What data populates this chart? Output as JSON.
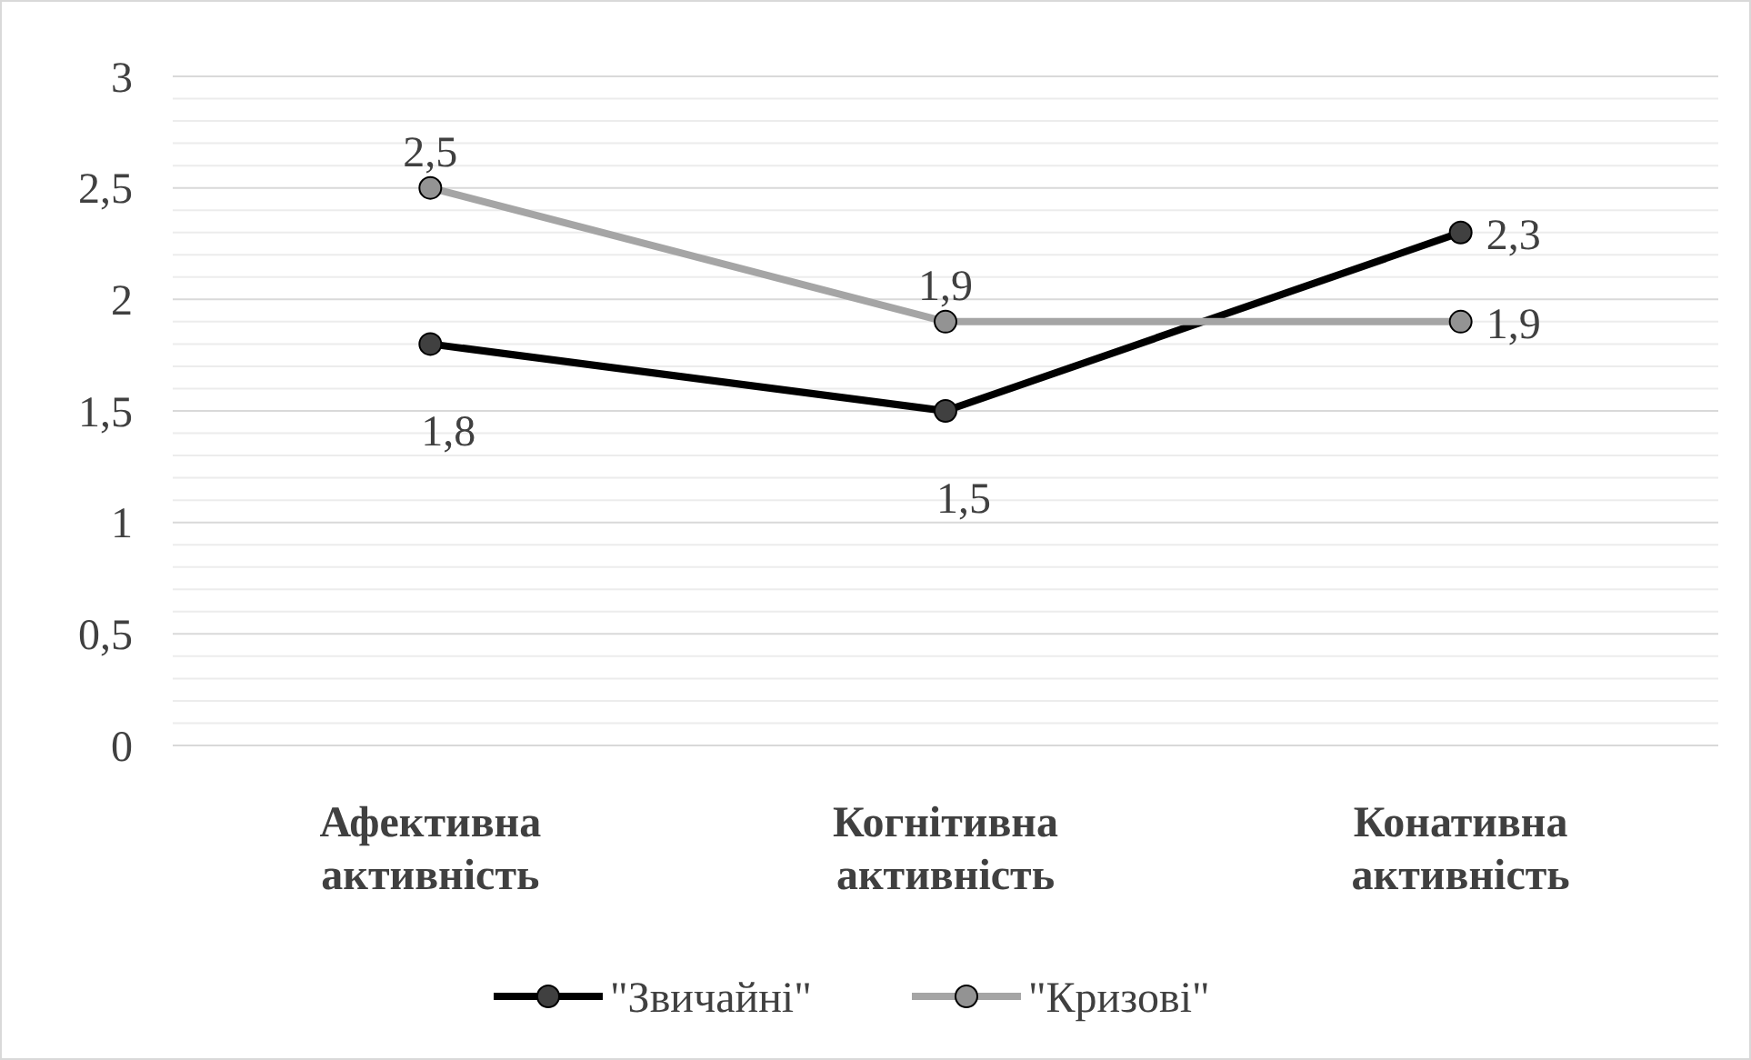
{
  "chart_data": {
    "type": "line",
    "categories": [
      "Афективна активність",
      "Когнітивна активність",
      "Конативна активність"
    ],
    "series": [
      {
        "name": "\"Звичайні\"",
        "color": "#000000",
        "values": [
          1.8,
          1.5,
          2.3
        ],
        "value_labels": [
          "1,8",
          "1,5",
          "2,3"
        ]
      },
      {
        "name": "\"Кризові\"",
        "color": "#a5a5a5",
        "values": [
          2.5,
          1.9,
          1.9
        ],
        "value_labels": [
          "2,5",
          "1,9",
          "1,9"
        ]
      }
    ],
    "ylim": [
      0,
      3
    ],
    "yticks": [
      {
        "value": 0,
        "label": "0"
      },
      {
        "value": 0.1,
        "label": null
      },
      {
        "value": 0.2,
        "label": null
      },
      {
        "value": 0.3,
        "label": null
      },
      {
        "value": 0.4,
        "label": null
      },
      {
        "value": 0.5,
        "label": "0,5"
      },
      {
        "value": 0.6,
        "label": null
      },
      {
        "value": 0.7,
        "label": null
      },
      {
        "value": 0.8,
        "label": null
      },
      {
        "value": 0.9,
        "label": null
      },
      {
        "value": 1,
        "label": "1"
      },
      {
        "value": 1.1,
        "label": null
      },
      {
        "value": 1.2,
        "label": null
      },
      {
        "value": 1.3,
        "label": null
      },
      {
        "value": 1.4,
        "label": null
      },
      {
        "value": 1.5,
        "label": "1,5"
      },
      {
        "value": 1.6,
        "label": null
      },
      {
        "value": 1.7,
        "label": null
      },
      {
        "value": 1.8,
        "label": null
      },
      {
        "value": 1.9,
        "label": null
      },
      {
        "value": 2,
        "label": "2"
      },
      {
        "value": 2.1,
        "label": null
      },
      {
        "value": 2.2,
        "label": null
      },
      {
        "value": 2.3,
        "label": null
      },
      {
        "value": 2.4,
        "label": null
      },
      {
        "value": 2.5,
        "label": "2,5"
      },
      {
        "value": 2.6,
        "label": null
      },
      {
        "value": 2.7,
        "label": null
      },
      {
        "value": 2.8,
        "label": null
      },
      {
        "value": 2.9,
        "label": null
      },
      {
        "value": 3,
        "label": "3"
      }
    ],
    "grid": "y",
    "legend": "bottom",
    "marker": "circle",
    "line_style": "solid"
  }
}
